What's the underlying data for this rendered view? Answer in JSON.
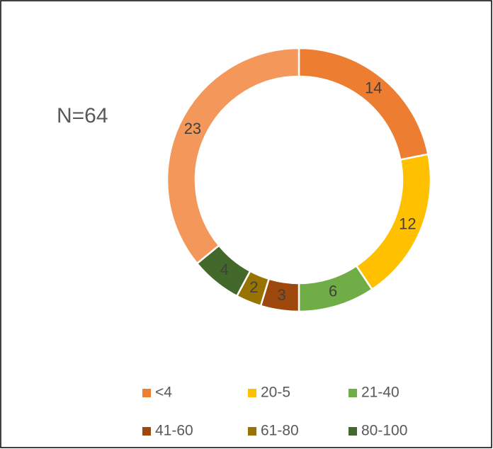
{
  "chart_data": {
    "type": "donut",
    "annotation": "N=64",
    "categories": [
      "<4",
      "20-5",
      "21-40",
      "41-60",
      "61-80",
      "80-100",
      null
    ],
    "values": [
      14,
      12,
      6,
      3,
      2,
      4,
      23
    ],
    "colors": [
      "#ED7D31",
      "#FFC000",
      "#70AD47",
      "#9E480E",
      "#997300",
      "#43682B",
      "#F4975A"
    ],
    "legend": "bottom"
  }
}
